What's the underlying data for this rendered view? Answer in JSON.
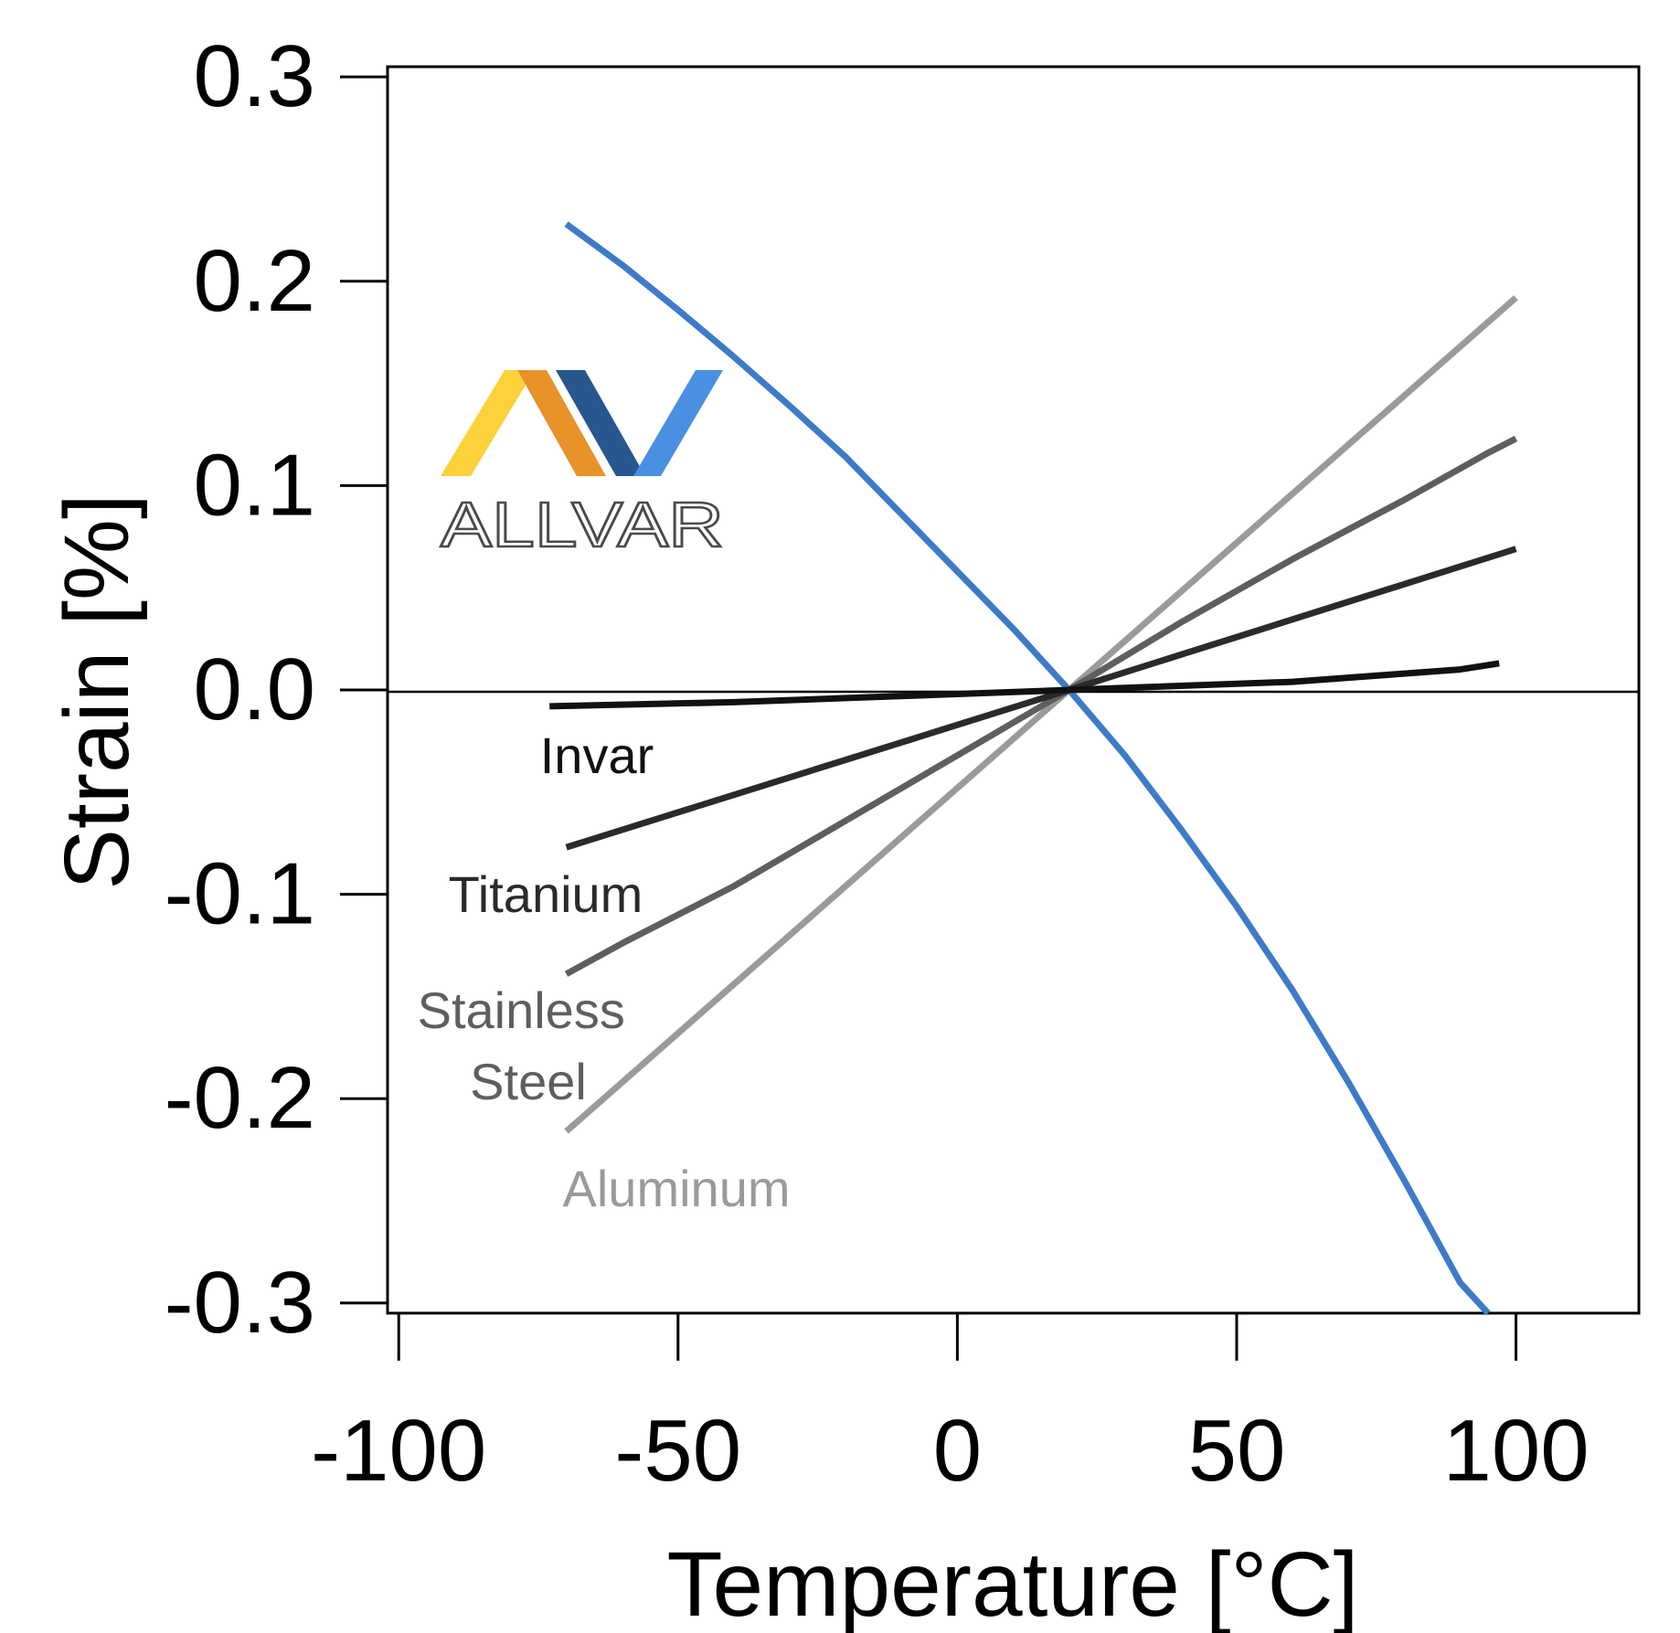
{
  "chart_data": {
    "type": "line",
    "xlabel": "Temperature [°C]",
    "ylabel": "Strain [%]",
    "xlim": [
      -102,
      122
    ],
    "ylim": [
      -0.305,
      0.305
    ],
    "x_ticks": [
      -100,
      -50,
      0,
      50,
      100
    ],
    "x_tick_labels": [
      "-100",
      "-50",
      "0",
      "50",
      "100"
    ],
    "y_ticks": [
      0.3,
      0.2,
      0.1,
      0.0,
      -0.1,
      -0.2,
      -0.3
    ],
    "y_tick_labels": [
      "0.3",
      "0.2",
      "0.1",
      "0.0",
      "-0.1",
      "-0.2",
      "-0.3"
    ],
    "zero_line": true,
    "grid": false,
    "series": [
      {
        "key": "allvar",
        "color": "#3d7bc8",
        "x": [
          -70,
          -60,
          -50,
          -40,
          -30,
          -20,
          -10,
          0,
          10,
          20,
          30,
          40,
          50,
          60,
          70,
          80,
          90,
          95
        ],
        "y": [
          0.228,
          0.208,
          0.186,
          0.163,
          0.139,
          0.114,
          0.086,
          0.058,
          0.03,
          0.0,
          -0.032,
          -0.068,
          -0.106,
          -0.147,
          -0.192,
          -0.24,
          -0.29,
          -0.305
        ]
      },
      {
        "name": "Aluminum",
        "color": "#9a9a9a",
        "x": [
          -70,
          20,
          100
        ],
        "y": [
          -0.216,
          0.0,
          0.192
        ]
      },
      {
        "name": "Stainless Steel",
        "color": "#5e5e5e",
        "x": [
          -70,
          -60,
          -40,
          -20,
          0,
          20,
          40,
          60,
          80,
          95,
          100
        ],
        "y": [
          -0.139,
          -0.124,
          -0.096,
          -0.064,
          -0.032,
          0.0,
          0.033,
          0.064,
          0.093,
          0.116,
          0.123
        ]
      },
      {
        "name": "Titanium",
        "color": "#2a2a2a",
        "x": [
          -70,
          20,
          100
        ],
        "y": [
          -0.077,
          0.0,
          0.069
        ]
      },
      {
        "name": "Invar",
        "color": "#111111",
        "x": [
          -73,
          -40,
          -20,
          0,
          20,
          40,
          60,
          80,
          90,
          97
        ],
        "y": [
          -0.008,
          -0.006,
          -0.004,
          -0.002,
          0.0,
          0.002,
          0.004,
          0.008,
          0.01,
          0.013
        ]
      }
    ]
  },
  "logo": {
    "text": "ALLVAR",
    "colors": [
      "#fdd13a",
      "#e8922a",
      "#27578e",
      "#4a90e2"
    ]
  }
}
